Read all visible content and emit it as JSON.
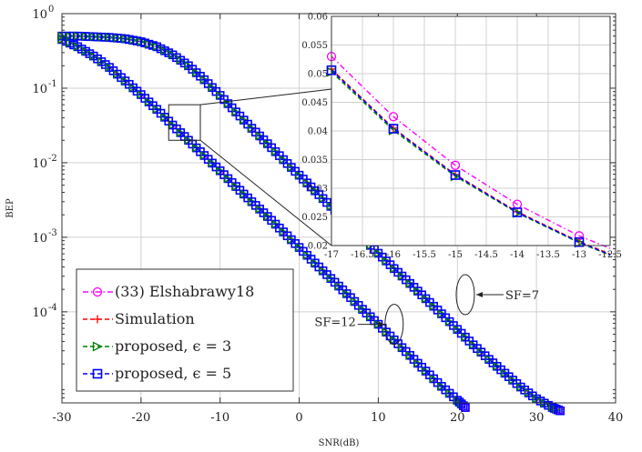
{
  "chart_data": [
    {
      "type": "line",
      "xlabel": "SNR(dB)",
      "ylabel": "BEP",
      "xlim": [
        -30,
        40
      ],
      "ylim": [
        6e-06,
        1
      ],
      "yscale": "log",
      "grid": true,
      "legend_placement": "bottom-left",
      "x_ticks": [
        "-30",
        "-20",
        "-10",
        "0",
        "10",
        "20",
        "30",
        "40"
      ],
      "y_ticks": [
        {
          "base": "10",
          "exp": "0",
          "value": 1
        },
        {
          "base": "10",
          "exp": "-1",
          "value": 0.1
        },
        {
          "base": "10",
          "exp": "-2",
          "value": 0.01
        },
        {
          "base": "10",
          "exp": "-3",
          "value": 0.001
        },
        {
          "base": "10",
          "exp": "-4",
          "value": 0.0001
        }
      ],
      "legend_entries": [
        {
          "label": "(33) Elshabrawy18",
          "color": "#ff00ff",
          "marker": "circle",
          "dash": "dashdot"
        },
        {
          "label": "Simulation",
          "color": "#ff0000",
          "marker": "plus",
          "dash": "dash"
        },
        {
          "label": "proposed, ϵ = 3",
          "color": "#008000",
          "marker": "triangle",
          "dash": "dash"
        },
        {
          "label": "proposed, ϵ = 5",
          "color": "#0000ff",
          "marker": "square",
          "dash": "dash"
        }
      ],
      "series": [
        {
          "name": "SF=12",
          "x": [
            -30,
            -28,
            -26,
            -24,
            -22,
            -20,
            -18,
            -16,
            -14,
            -12,
            -10,
            -8,
            -6,
            -4,
            -2,
            0,
            2,
            4,
            6,
            8,
            10,
            12,
            14,
            16,
            18,
            20,
            21
          ],
          "values": [
            0.45,
            0.36,
            0.27,
            0.19,
            0.125,
            0.082,
            0.052,
            0.032,
            0.02,
            0.0125,
            0.0078,
            0.0048,
            0.003,
            0.0019,
            0.00118,
            0.00073,
            0.00045,
            0.00028,
            0.000175,
            0.000108,
            6.8e-05,
            4.2e-05,
            2.6e-05,
            1.6e-05,
            1e-05,
            6.5e-06,
            5.2e-06
          ]
        },
        {
          "name": "SF=7",
          "x": [
            -30,
            -28,
            -26,
            -24,
            -22,
            -20,
            -18,
            -16,
            -14,
            -12,
            -10,
            -8,
            -6,
            -4,
            -2,
            0,
            2,
            4,
            6,
            8,
            10,
            12,
            14,
            16,
            18,
            20,
            22,
            24,
            26,
            28,
            30,
            32,
            33
          ],
          "values": [
            0.5,
            0.5,
            0.49,
            0.48,
            0.46,
            0.42,
            0.36,
            0.28,
            0.2,
            0.13,
            0.08,
            0.048,
            0.029,
            0.018,
            0.011,
            0.0068,
            0.0042,
            0.0026,
            0.0016,
            0.00099,
            0.00061,
            0.00038,
            0.00024,
            0.00015,
            9.4e-05,
            5.8e-05,
            3.6e-05,
            2.3e-05,
            1.5e-05,
            9.8e-06,
            6.8e-06,
            5.2e-06,
            4.7e-06
          ]
        }
      ],
      "annotations": [
        {
          "text": "SF=7",
          "x": 21,
          "y": 0.00017
        },
        {
          "text": "SF=12",
          "x": 12,
          "y": 6.78e-05
        }
      ]
    },
    {
      "type": "line",
      "role": "inset",
      "xlim": [
        -17,
        -12.5
      ],
      "ylim": [
        0.02,
        0.06
      ],
      "grid": true,
      "x_ticks": [
        "-17",
        "-16.5",
        "-16",
        "-15.5",
        "-15",
        "-14.5",
        "-14",
        "-13.5",
        "-13",
        "-12.5"
      ],
      "y_ticks": [
        "0.02",
        "0.025",
        "0.03",
        "0.035",
        "0.04",
        "0.045",
        "0.05",
        "0.055",
        "0.06"
      ],
      "series": [
        {
          "name": "(33) Elshabrawy18",
          "x": [
            -17,
            -16,
            -15,
            -14,
            -13,
            -12.5
          ],
          "values": [
            0.053,
            0.0425,
            0.034,
            0.0272,
            0.0217,
            0.0195
          ]
        },
        {
          "name": "Simulation",
          "x": [
            -17,
            -16,
            -15,
            -14,
            -13,
            -12.5
          ],
          "values": [
            0.0508,
            0.0405,
            0.0324,
            0.0259,
            0.0207,
            0.0185
          ]
        },
        {
          "name": "proposed, ϵ = 3",
          "x": [
            -17,
            -16,
            -15,
            -14,
            -13,
            -12.5
          ],
          "values": [
            0.0503,
            0.0401,
            0.0321,
            0.0257,
            0.0205,
            0.0183
          ]
        },
        {
          "name": "proposed, ϵ = 5",
          "x": [
            -17,
            -16,
            -15,
            -14,
            -13,
            -12.5
          ],
          "values": [
            0.0506,
            0.0404,
            0.0323,
            0.0258,
            0.0206,
            0.0184
          ]
        }
      ],
      "zoom_box": {
        "xlim": [
          -16.5,
          -12.5
        ],
        "ylim": [
          0.02,
          0.06
        ]
      }
    }
  ]
}
